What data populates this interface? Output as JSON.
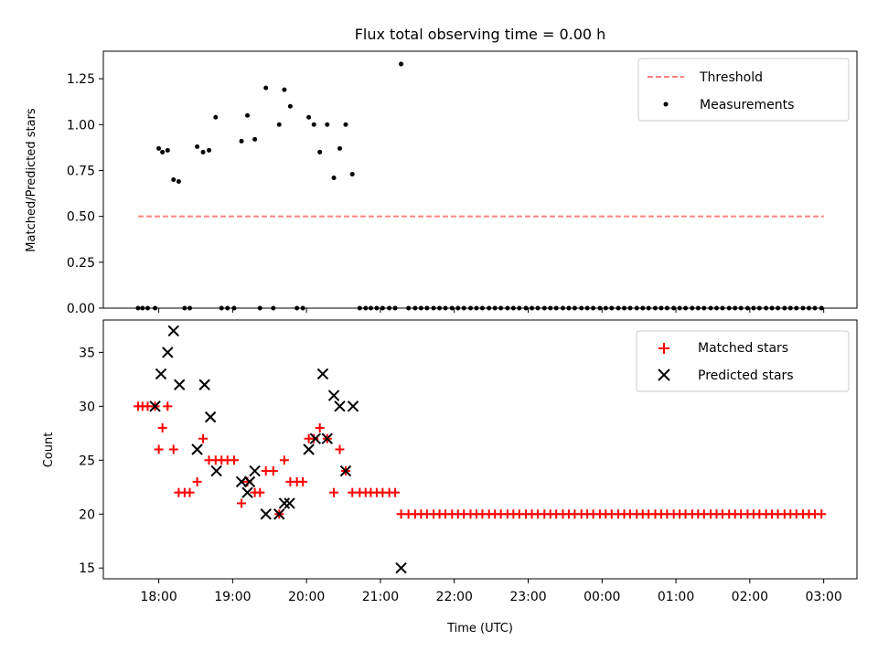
{
  "figure": {
    "title": "Flux total observing time = 0.00 h",
    "xlabel": "Time (UTC)",
    "x_ticks": [
      "18:00",
      "19:00",
      "20:00",
      "21:00",
      "22:00",
      "23:00",
      "00:00",
      "01:00",
      "02:00",
      "03:00"
    ]
  },
  "chart_data": [
    {
      "type": "scatter",
      "ylabel": "Matched/Predicted stars",
      "ylim": [
        0,
        1.4
      ],
      "y_ticks": [
        "0.00",
        "0.25",
        "0.50",
        "0.75",
        "1.00",
        "1.25"
      ],
      "xlim_hours": [
        17.25,
        27.45
      ],
      "legend_position": "top-right",
      "threshold": {
        "name": "Threshold",
        "y": 0.5,
        "x_range": [
          17.72,
          27.0
        ],
        "color": "#ff8080"
      },
      "series": [
        {
          "name": "Measurements",
          "color": "#000000",
          "x": [
            17.72,
            17.78,
            17.85,
            17.95,
            18.0,
            18.05,
            18.12,
            18.2,
            18.27,
            18.35,
            18.42,
            18.52,
            18.6,
            18.68,
            18.77,
            18.85,
            18.93,
            19.02,
            19.12,
            19.2,
            19.3,
            19.37,
            19.45,
            19.55,
            19.63,
            19.7,
            19.78,
            19.87,
            19.95,
            20.03,
            20.1,
            20.18,
            20.28,
            20.37,
            20.45,
            20.53,
            20.62,
            20.72,
            20.8,
            20.87,
            20.95,
            21.03,
            21.12,
            21.2,
            21.28,
            21.38,
            21.47,
            21.55,
            21.63,
            21.72,
            21.8,
            21.88,
            21.97,
            22.05,
            22.13,
            22.22,
            22.3,
            22.38,
            22.47,
            22.55,
            22.63,
            22.72,
            22.8,
            22.88,
            22.97,
            23.05,
            23.13,
            23.22,
            23.3,
            23.38,
            23.47,
            23.55,
            23.63,
            23.72,
            23.8,
            23.88,
            23.97,
            24.05,
            24.13,
            24.22,
            24.3,
            24.38,
            24.47,
            24.55,
            24.63,
            24.72,
            24.8,
            24.88,
            24.97,
            25.05,
            25.13,
            25.22,
            25.3,
            25.38,
            25.47,
            25.55,
            25.63,
            25.72,
            25.8,
            25.88,
            25.97,
            26.05,
            26.13,
            26.22,
            26.3,
            26.38,
            26.47,
            26.55,
            26.63,
            26.72,
            26.8,
            26.88,
            26.97
          ],
          "y": [
            0,
            0,
            0,
            0,
            0.87,
            0.85,
            0.86,
            0.7,
            0.69,
            0,
            0,
            0.88,
            0.85,
            0.86,
            1.04,
            0,
            0,
            0,
            0.91,
            1.05,
            0.92,
            0,
            1.2,
            0,
            1.0,
            1.19,
            1.1,
            0,
            0,
            1.04,
            1.0,
            0.85,
            1.0,
            0.71,
            0.87,
            1.0,
            0.73,
            0,
            0,
            0,
            0,
            0,
            0,
            0,
            1.33,
            0,
            0,
            0,
            0,
            0,
            0,
            0,
            0,
            0,
            0,
            0,
            0,
            0,
            0,
            0,
            0,
            0,
            0,
            0,
            0,
            0,
            0,
            0,
            0,
            0,
            0,
            0,
            0,
            0,
            0,
            0,
            0,
            0,
            0,
            0,
            0,
            0,
            0,
            0,
            0,
            0,
            0,
            0,
            0,
            0,
            0,
            0,
            0,
            0,
            0,
            0,
            0,
            0,
            0,
            0,
            0,
            0,
            0,
            0,
            0,
            0,
            0,
            0,
            0,
            0,
            0,
            0,
            0
          ]
        }
      ]
    },
    {
      "type": "scatter",
      "ylabel": "Count",
      "ylim": [
        14,
        38
      ],
      "y_ticks": [
        "15",
        "20",
        "25",
        "30",
        "35"
      ],
      "xlim_hours": [
        17.25,
        27.45
      ],
      "legend_position": "top-right",
      "series": [
        {
          "name": "Matched stars",
          "marker": "plus",
          "color": "#ff0000",
          "x": [
            17.72,
            17.78,
            17.85,
            17.95,
            18.0,
            18.05,
            18.12,
            18.2,
            18.27,
            18.35,
            18.42,
            18.52,
            18.6,
            18.68,
            18.77,
            18.85,
            18.93,
            19.02,
            19.12,
            19.2,
            19.3,
            19.37,
            19.45,
            19.55,
            19.63,
            19.7,
            19.78,
            19.87,
            19.95,
            20.03,
            20.1,
            20.18,
            20.28,
            20.37,
            20.45,
            20.53,
            20.62,
            20.72,
            20.8,
            20.87,
            20.95,
            21.03,
            21.12,
            21.2,
            21.28,
            21.38,
            21.47,
            21.55,
            21.63,
            21.72,
            21.8,
            21.88,
            21.97,
            22.05,
            22.13,
            22.22,
            22.3,
            22.38,
            22.47,
            22.55,
            22.63,
            22.72,
            22.8,
            22.88,
            22.97,
            23.05,
            23.13,
            23.22,
            23.3,
            23.38,
            23.47,
            23.55,
            23.63,
            23.72,
            23.8,
            23.88,
            23.97,
            24.05,
            24.13,
            24.22,
            24.3,
            24.38,
            24.47,
            24.55,
            24.63,
            24.72,
            24.8,
            24.88,
            24.97,
            25.05,
            25.13,
            25.22,
            25.3,
            25.38,
            25.47,
            25.55,
            25.63,
            25.72,
            25.8,
            25.88,
            25.97,
            26.05,
            26.13,
            26.22,
            26.3,
            26.38,
            26.47,
            26.55,
            26.63,
            26.72,
            26.8,
            26.88,
            26.97
          ],
          "y": [
            30,
            30,
            30,
            30,
            26,
            28,
            30,
            26,
            22,
            22,
            22,
            23,
            27,
            25,
            25,
            25,
            25,
            25,
            21,
            23,
            22,
            22,
            24,
            24,
            20,
            25,
            23,
            23,
            23,
            27,
            27,
            28,
            27,
            22,
            26,
            24,
            22,
            22,
            22,
            22,
            22,
            22,
            22,
            22,
            20,
            20,
            20,
            20,
            20,
            20,
            20,
            20,
            20,
            20,
            20,
            20,
            20,
            20,
            20,
            20,
            20,
            20,
            20,
            20,
            20,
            20,
            20,
            20,
            20,
            20,
            20,
            20,
            20,
            20,
            20,
            20,
            20,
            20,
            20,
            20,
            20,
            20,
            20,
            20,
            20,
            20,
            20,
            20,
            20,
            20,
            20,
            20,
            20,
            20,
            20,
            20,
            20,
            20,
            20,
            20,
            20,
            20,
            20,
            20,
            20,
            20,
            20,
            20,
            20,
            20,
            20,
            20,
            20
          ]
        },
        {
          "name": "Predicted stars",
          "marker": "x",
          "color": "#000000",
          "x": [
            17.95,
            18.03,
            18.12,
            18.2,
            18.28,
            18.52,
            18.62,
            18.7,
            18.78,
            19.12,
            19.2,
            19.23,
            19.3,
            19.45,
            19.63,
            19.7,
            19.77,
            20.03,
            20.12,
            20.22,
            20.28,
            20.37,
            20.45,
            20.53,
            20.63,
            21.28
          ],
          "y": [
            30,
            33,
            35,
            37,
            32,
            26,
            32,
            29,
            24,
            23,
            22,
            23,
            24,
            20,
            20,
            21,
            21,
            26,
            27,
            33,
            27,
            31,
            30,
            24,
            30,
            15
          ]
        }
      ]
    }
  ]
}
